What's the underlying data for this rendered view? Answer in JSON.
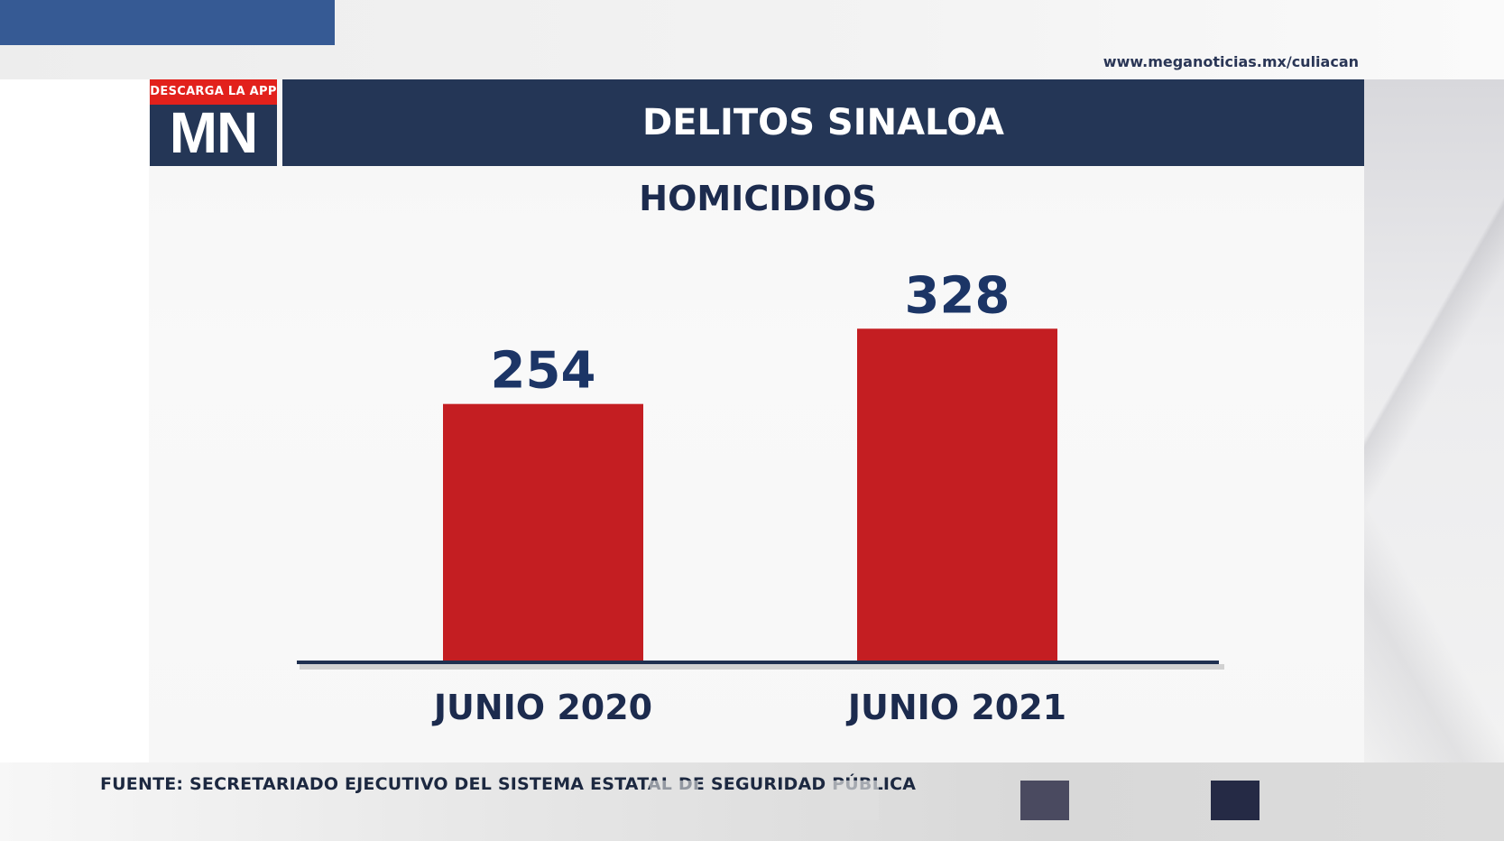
{
  "site_url": "www.meganoticias.mx/culiacan",
  "logo": {
    "tag": "DESCARGA LA APP",
    "mark": "MN"
  },
  "header": {
    "title": "DELITOS SINALOA"
  },
  "colors": {
    "bar": "#c41e22",
    "navy": "#243656",
    "value_text": "#1c3566"
  },
  "chart_data": {
    "type": "bar",
    "title": "HOMICIDIOS",
    "categories": [
      "JUNIO 2020",
      "JUNIO 2021"
    ],
    "values": [
      254,
      328
    ],
    "ylim": [
      0,
      330
    ],
    "grid": false
  },
  "footer": {
    "source": "FUENTE: SECRETARIADO EJECUTIVO DEL SISTEMA ESTATAL DE SEGURIDAD PÚBLICA"
  }
}
